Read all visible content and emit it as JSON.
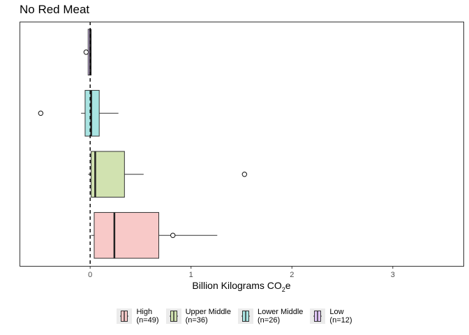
{
  "chart_data": {
    "type": "boxplot",
    "orientation": "horizontal",
    "title": "No Red Meat",
    "xlabel_main": "Billion Kilograms CO",
    "xlabel_sub": "2",
    "xlabel_end": "e",
    "xlim": [
      -0.7,
      3.7
    ],
    "xticks": [
      0,
      1,
      2,
      3
    ],
    "reference_line": 0,
    "grid": false,
    "legend_position": "bottom",
    "series": [
      {
        "name": "High",
        "n_label": "(n=49)",
        "color": "#f8c9c8",
        "whisker_low": 0.01,
        "q1": 0.04,
        "median": 0.24,
        "q3": 0.68,
        "whisker_high": 1.26,
        "outliers": [
          0.82
        ]
      },
      {
        "name": "Upper Middle",
        "n_label": "(n=36)",
        "color": "#d1e2b0",
        "whisker_low": -0.02,
        "q1": 0.01,
        "median": 0.05,
        "q3": 0.34,
        "whisker_high": 0.53,
        "outliers": [
          1.53
        ]
      },
      {
        "name": "Lower Middle",
        "n_label": "(n=26)",
        "color": "#a9e4e2",
        "whisker_low": -0.09,
        "q1": -0.05,
        "median": 0.01,
        "q3": 0.09,
        "whisker_high": 0.28,
        "outliers": [
          -0.49
        ]
      },
      {
        "name": "Low",
        "n_label": "(n=12)",
        "color": "#e0c6f8",
        "whisker_low": -0.03,
        "q1": -0.02,
        "median": 0.0,
        "q3": 0.01,
        "whisker_high": 0.01,
        "outliers": [
          -0.04
        ]
      }
    ]
  }
}
